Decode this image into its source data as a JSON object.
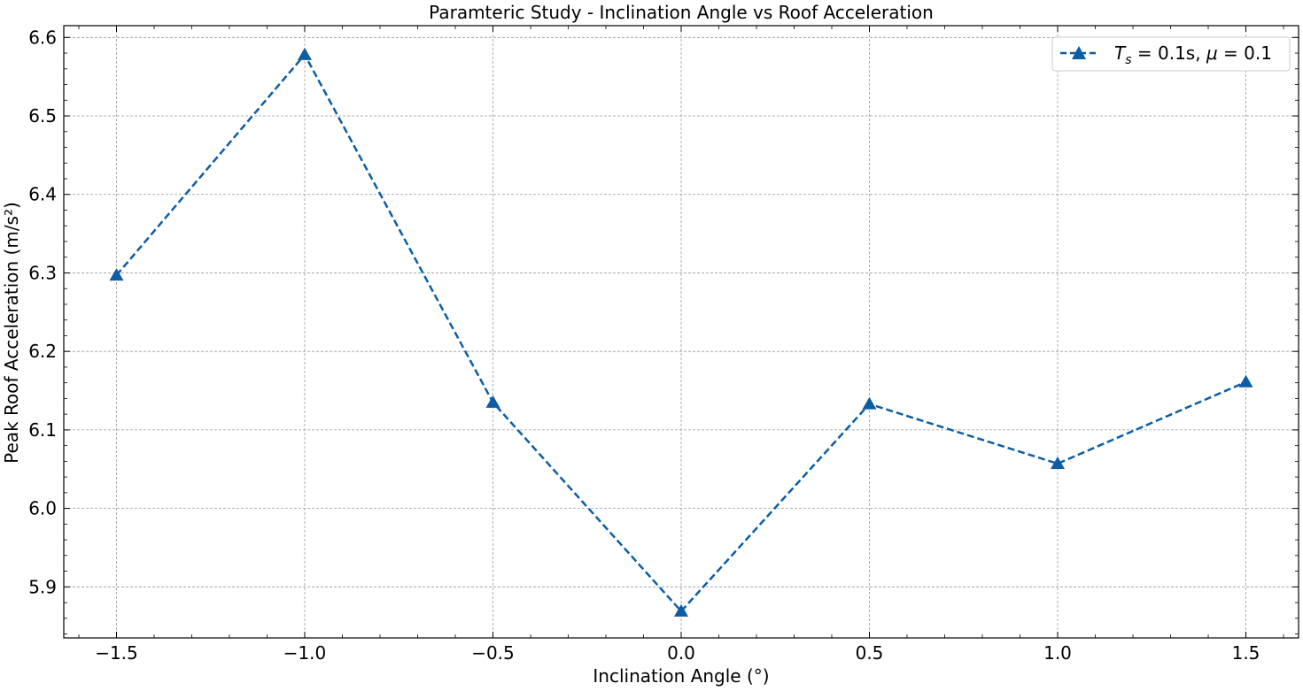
{
  "chart_data": {
    "type": "line",
    "title": "Paramteric Study - Inclination Angle vs Roof Acceleration",
    "xlabel": "Inclination Angle (°)",
    "ylabel": "Peak Roof Acceleration (m/s²)",
    "xlim": [
      -1.64,
      1.64
    ],
    "ylim": [
      5.835,
      6.615
    ],
    "x_ticks": [
      -1.5,
      -1.0,
      -0.5,
      0.0,
      0.5,
      1.0,
      1.5
    ],
    "x_tick_labels": [
      "−1.5",
      "−1.0",
      "−0.5",
      "0.0",
      "0.5",
      "1.0",
      "1.5"
    ],
    "y_ticks": [
      5.9,
      6.0,
      6.1,
      6.2,
      6.3,
      6.4,
      6.5,
      6.6
    ],
    "y_tick_labels": [
      "5.9",
      "6.0",
      "6.1",
      "6.2",
      "6.3",
      "6.4",
      "6.5",
      "6.6"
    ],
    "grid": true,
    "legend_position": "top-right",
    "series": [
      {
        "name": "T_s = 0.1s, μ = 0.1",
        "legend_parts": {
          "T": "T",
          "s": "s",
          "eq1": " = 0.1s, ",
          "mu": "μ",
          "eq2": " = 0.1"
        },
        "color": "#0C5DA5",
        "line_style": "dashed",
        "marker": "triangle-up",
        "x": [
          -1.5,
          -1.0,
          -0.5,
          0.0,
          0.5,
          1.0,
          1.5
        ],
        "y": [
          6.297,
          6.578,
          6.135,
          5.869,
          6.133,
          6.057,
          6.161
        ]
      }
    ]
  }
}
